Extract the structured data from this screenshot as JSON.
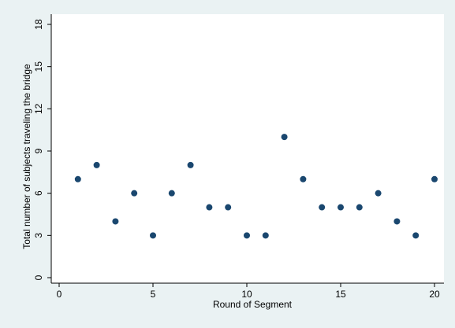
{
  "chart_data": {
    "type": "scatter",
    "title": "",
    "xlabel": "Round of Segment",
    "ylabel": "Total number of subjects traveling the bridge",
    "xlim": [
      0,
      20
    ],
    "ylim": [
      0,
      18
    ],
    "xticks": [
      0,
      5,
      10,
      15,
      20
    ],
    "yticks": [
      0,
      3,
      6,
      9,
      12,
      15,
      18
    ],
    "grid": false,
    "legend": "none",
    "point_color": "#1a476f",
    "background": "#eaf2f3",
    "plot_background": "#ffffff",
    "x": [
      1,
      2,
      3,
      4,
      5,
      6,
      7,
      8,
      9,
      10,
      11,
      12,
      13,
      14,
      15,
      16,
      17,
      18,
      19,
      20
    ],
    "y": [
      7,
      8,
      4,
      6,
      3,
      6,
      8,
      5,
      5,
      3,
      3,
      10,
      7,
      5,
      5,
      5,
      6,
      4,
      3,
      7
    ]
  }
}
